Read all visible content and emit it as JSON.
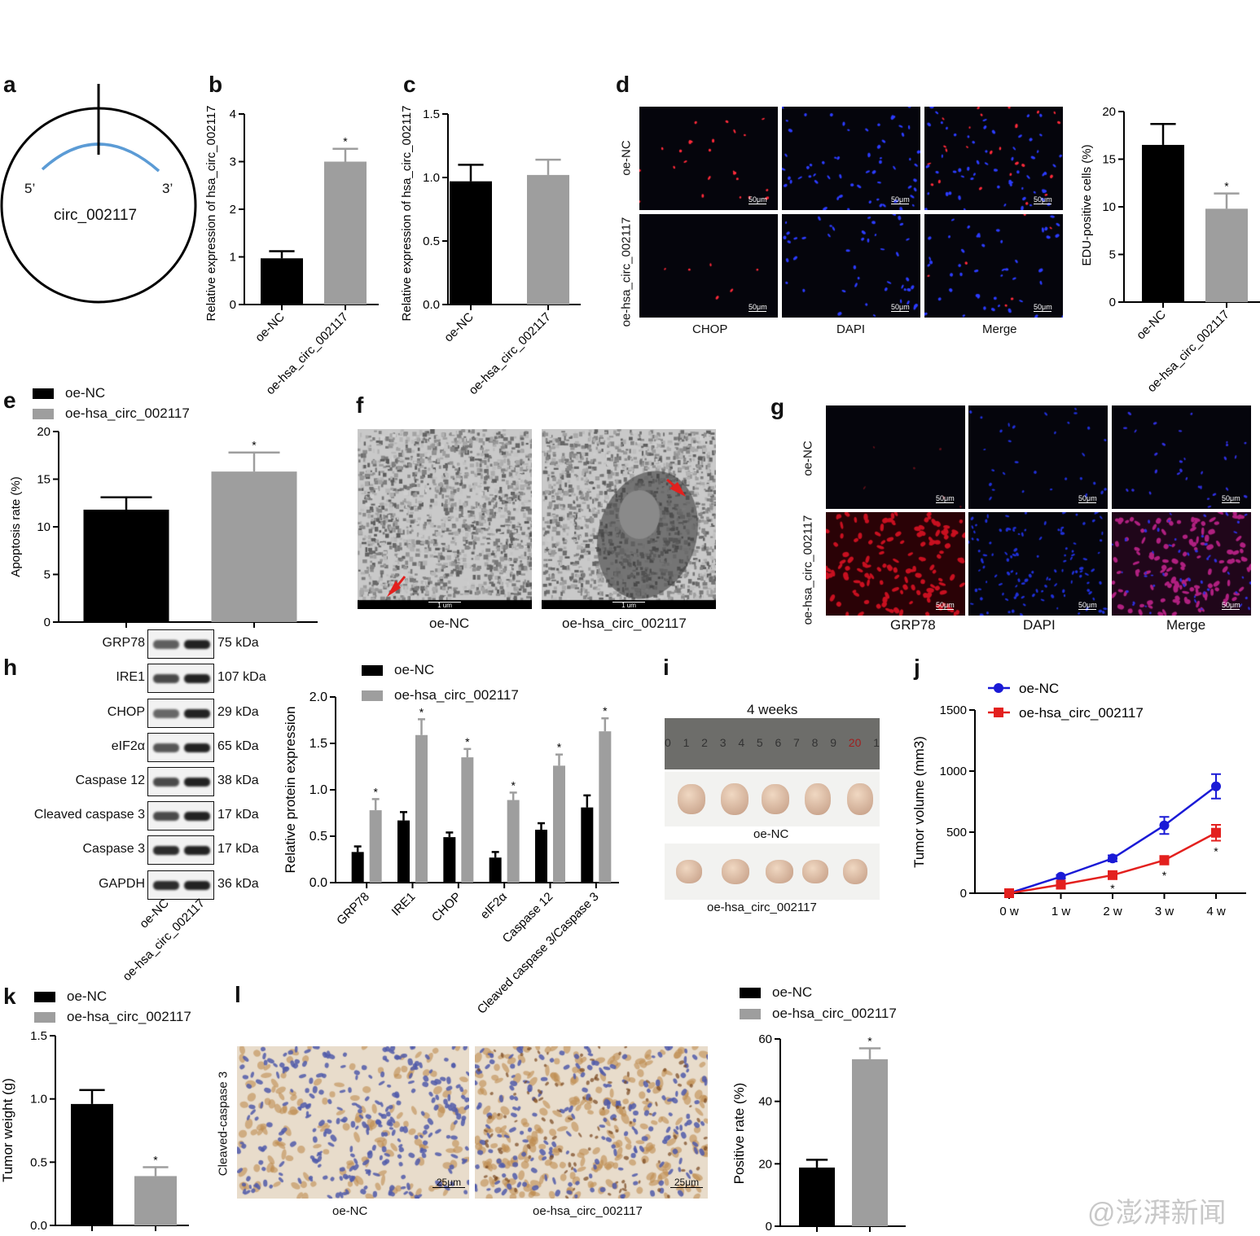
{
  "panel_letters": [
    "a",
    "b",
    "c",
    "d",
    "e",
    "f",
    "g",
    "h",
    "i",
    "j",
    "k",
    "l"
  ],
  "groups": {
    "nc": "oe-NC",
    "oe": "oe-hsa_circ_002117"
  },
  "colors": {
    "nc": "#000000",
    "oe": "#9e9e9e",
    "line_nc": "#1a1ad6",
    "line_oe": "#e3201e",
    "arc": "#5b9bd5"
  },
  "panel_a": {
    "five_prime": "5’",
    "three_prime": "3’",
    "name": "circ_002117"
  },
  "panel_d": {
    "columns": [
      "CHOP",
      "DAPI",
      "Merge"
    ],
    "rows": [
      "oe-NC",
      "oe-hsa_circ_002117"
    ],
    "scale": "50μm"
  },
  "panel_f": {
    "labels": [
      "oe-NC",
      "oe-hsa_circ_002117"
    ],
    "scale": "1 um"
  },
  "panel_g": {
    "columns": [
      "GRP78",
      "DAPI",
      "Merge"
    ],
    "rows": [
      "oe-NC",
      "oe-hsa_circ_002117"
    ],
    "scale": "50μm"
  },
  "panel_h_blot": {
    "proteins": [
      {
        "name": "GRP78",
        "kda": "75 kDa"
      },
      {
        "name": "IRE1",
        "kda": "107 kDa"
      },
      {
        "name": "CHOP",
        "kda": "29 kDa"
      },
      {
        "name": "eIF2α",
        "kda": "65 kDa"
      },
      {
        "name": "Caspase 12",
        "kda": "38 kDa"
      },
      {
        "name": "Cleaved caspase 3",
        "kda": "17 kDa"
      },
      {
        "name": "Caspase 3",
        "kda": "17 kDa"
      },
      {
        "name": "GAPDH",
        "kda": "36 kDa"
      }
    ],
    "lanes": [
      "oe-NC",
      "oe-hsa_circ_002117"
    ]
  },
  "panel_i": {
    "title": "4 weeks",
    "labels": [
      "oe-NC",
      "oe-hsa_circ_002117"
    ],
    "ruler_ticks": [
      "0",
      "1",
      "2",
      "3",
      "4",
      "5",
      "6",
      "7",
      "8",
      "9",
      "20",
      "1"
    ]
  },
  "panel_l": {
    "ylabel": "Cleaved-caspase 3",
    "labels": [
      "oe-NC",
      "oe-hsa_circ_002117"
    ],
    "scale": "25μm"
  },
  "watermark": "@澎湃新闻",
  "chart_data": [
    {
      "panel": "b",
      "type": "bar",
      "categories": [
        "oe-NC",
        "oe-hsa_circ_002117"
      ],
      "values": [
        0.97,
        3.0
      ],
      "errors": [
        0.15,
        0.27
      ],
      "significant": [
        false,
        true
      ],
      "ylabel": "Relative expression of hsa_circ_002117",
      "ylim": [
        0,
        4
      ],
      "yticks": [
        "0",
        "1",
        "2",
        "3",
        "4"
      ],
      "show_xticks": true
    },
    {
      "panel": "c",
      "type": "bar",
      "categories": [
        "oe-NC",
        "oe-hsa_circ_002117"
      ],
      "values": [
        0.97,
        1.02
      ],
      "errors": [
        0.13,
        0.12
      ],
      "significant": [
        false,
        false
      ],
      "ylabel": "Relative expression of hsa_circ_002117",
      "ylim": [
        0,
        1.5
      ],
      "yticks": [
        "0.0",
        "0.5",
        "1.0",
        "1.5"
      ],
      "show_xticks": true
    },
    {
      "panel": "d",
      "type": "bar",
      "categories": [
        "oe-NC",
        "oe-hsa_circ_002117"
      ],
      "values": [
        16.5,
        9.8
      ],
      "errors": [
        2.2,
        1.6
      ],
      "significant": [
        false,
        true
      ],
      "ylabel": "EDU-positive cells (%)",
      "ylim": [
        0,
        20
      ],
      "yticks": [
        "0",
        "5",
        "10",
        "15",
        "20"
      ],
      "show_xticks": true
    },
    {
      "panel": "e",
      "type": "bar",
      "categories": [
        "oe-NC",
        "oe-hsa_circ_002117"
      ],
      "values": [
        11.8,
        15.8
      ],
      "errors": [
        1.3,
        2.0
      ],
      "significant": [
        false,
        true
      ],
      "ylabel": "Apoptosis rate (%)",
      "ylim": [
        0,
        20
      ],
      "yticks": [
        "0",
        "5",
        "10",
        "15",
        "20"
      ],
      "show_xticks": false,
      "legend": "top-left"
    },
    {
      "panel": "h",
      "type": "bar",
      "categories": [
        "GRP78",
        "IRE1",
        "CHOP",
        "eIF2α",
        "Caspase 12",
        "Cleaved caspase 3/Caspase 3"
      ],
      "series": [
        {
          "name": "oe-NC",
          "values": [
            0.33,
            0.67,
            0.49,
            0.27,
            0.57,
            0.81
          ],
          "errors": [
            0.06,
            0.09,
            0.05,
            0.06,
            0.07,
            0.13
          ],
          "significant": [
            false,
            false,
            false,
            false,
            false,
            false
          ]
        },
        {
          "name": "oe-hsa_circ_002117",
          "values": [
            0.78,
            1.59,
            1.35,
            0.89,
            1.26,
            1.63
          ],
          "errors": [
            0.12,
            0.17,
            0.09,
            0.08,
            0.12,
            0.14
          ],
          "significant": [
            true,
            true,
            true,
            true,
            true,
            true
          ]
        }
      ],
      "ylabel": "Relative protein expression",
      "ylim": [
        0,
        2
      ],
      "yticks": [
        "0.0",
        "0.5",
        "1.0",
        "1.5",
        "2.0"
      ],
      "legend": "top"
    },
    {
      "panel": "j",
      "type": "line",
      "x": [
        "0 w",
        "1 w",
        "2 w",
        "3 w",
        "4 w"
      ],
      "series": [
        {
          "name": "oe-NC",
          "values": [
            0,
            135,
            285,
            555,
            875
          ],
          "errors": [
            0,
            15,
            25,
            70,
            100
          ],
          "significant": [
            false,
            false,
            false,
            false,
            false
          ]
        },
        {
          "name": "oe-hsa_circ_002117",
          "values": [
            0,
            70,
            148,
            270,
            495
          ],
          "errors": [
            0,
            15,
            20,
            35,
            65
          ],
          "significant": [
            false,
            false,
            true,
            true,
            true
          ]
        }
      ],
      "ylabel": "Tumor volume (mm3)",
      "ylim": [
        0,
        1500
      ],
      "yticks": [
        "0",
        "500",
        "1000",
        "1500"
      ],
      "legend": "top-left"
    },
    {
      "panel": "k",
      "type": "bar",
      "categories": [
        "oe-NC",
        "oe-hsa_circ_002117"
      ],
      "values": [
        0.96,
        0.39
      ],
      "errors": [
        0.11,
        0.07
      ],
      "significant": [
        false,
        true
      ],
      "ylabel": "Tumor weight (g)",
      "ylim": [
        0,
        1.5
      ],
      "yticks": [
        "0.0",
        "0.5",
        "1.0",
        "1.5"
      ],
      "show_xticks": false,
      "legend": "top-left"
    },
    {
      "panel": "l",
      "type": "bar",
      "categories": [
        "oe-NC",
        "oe-hsa_circ_002117"
      ],
      "values": [
        18.8,
        53.5
      ],
      "errors": [
        2.5,
        3.5
      ],
      "significant": [
        false,
        true
      ],
      "ylabel": "Positive rate (%)",
      "ylim": [
        0,
        60
      ],
      "yticks": [
        "0",
        "20",
        "40",
        "60"
      ],
      "show_xticks": false,
      "legend": "top-left"
    }
  ]
}
